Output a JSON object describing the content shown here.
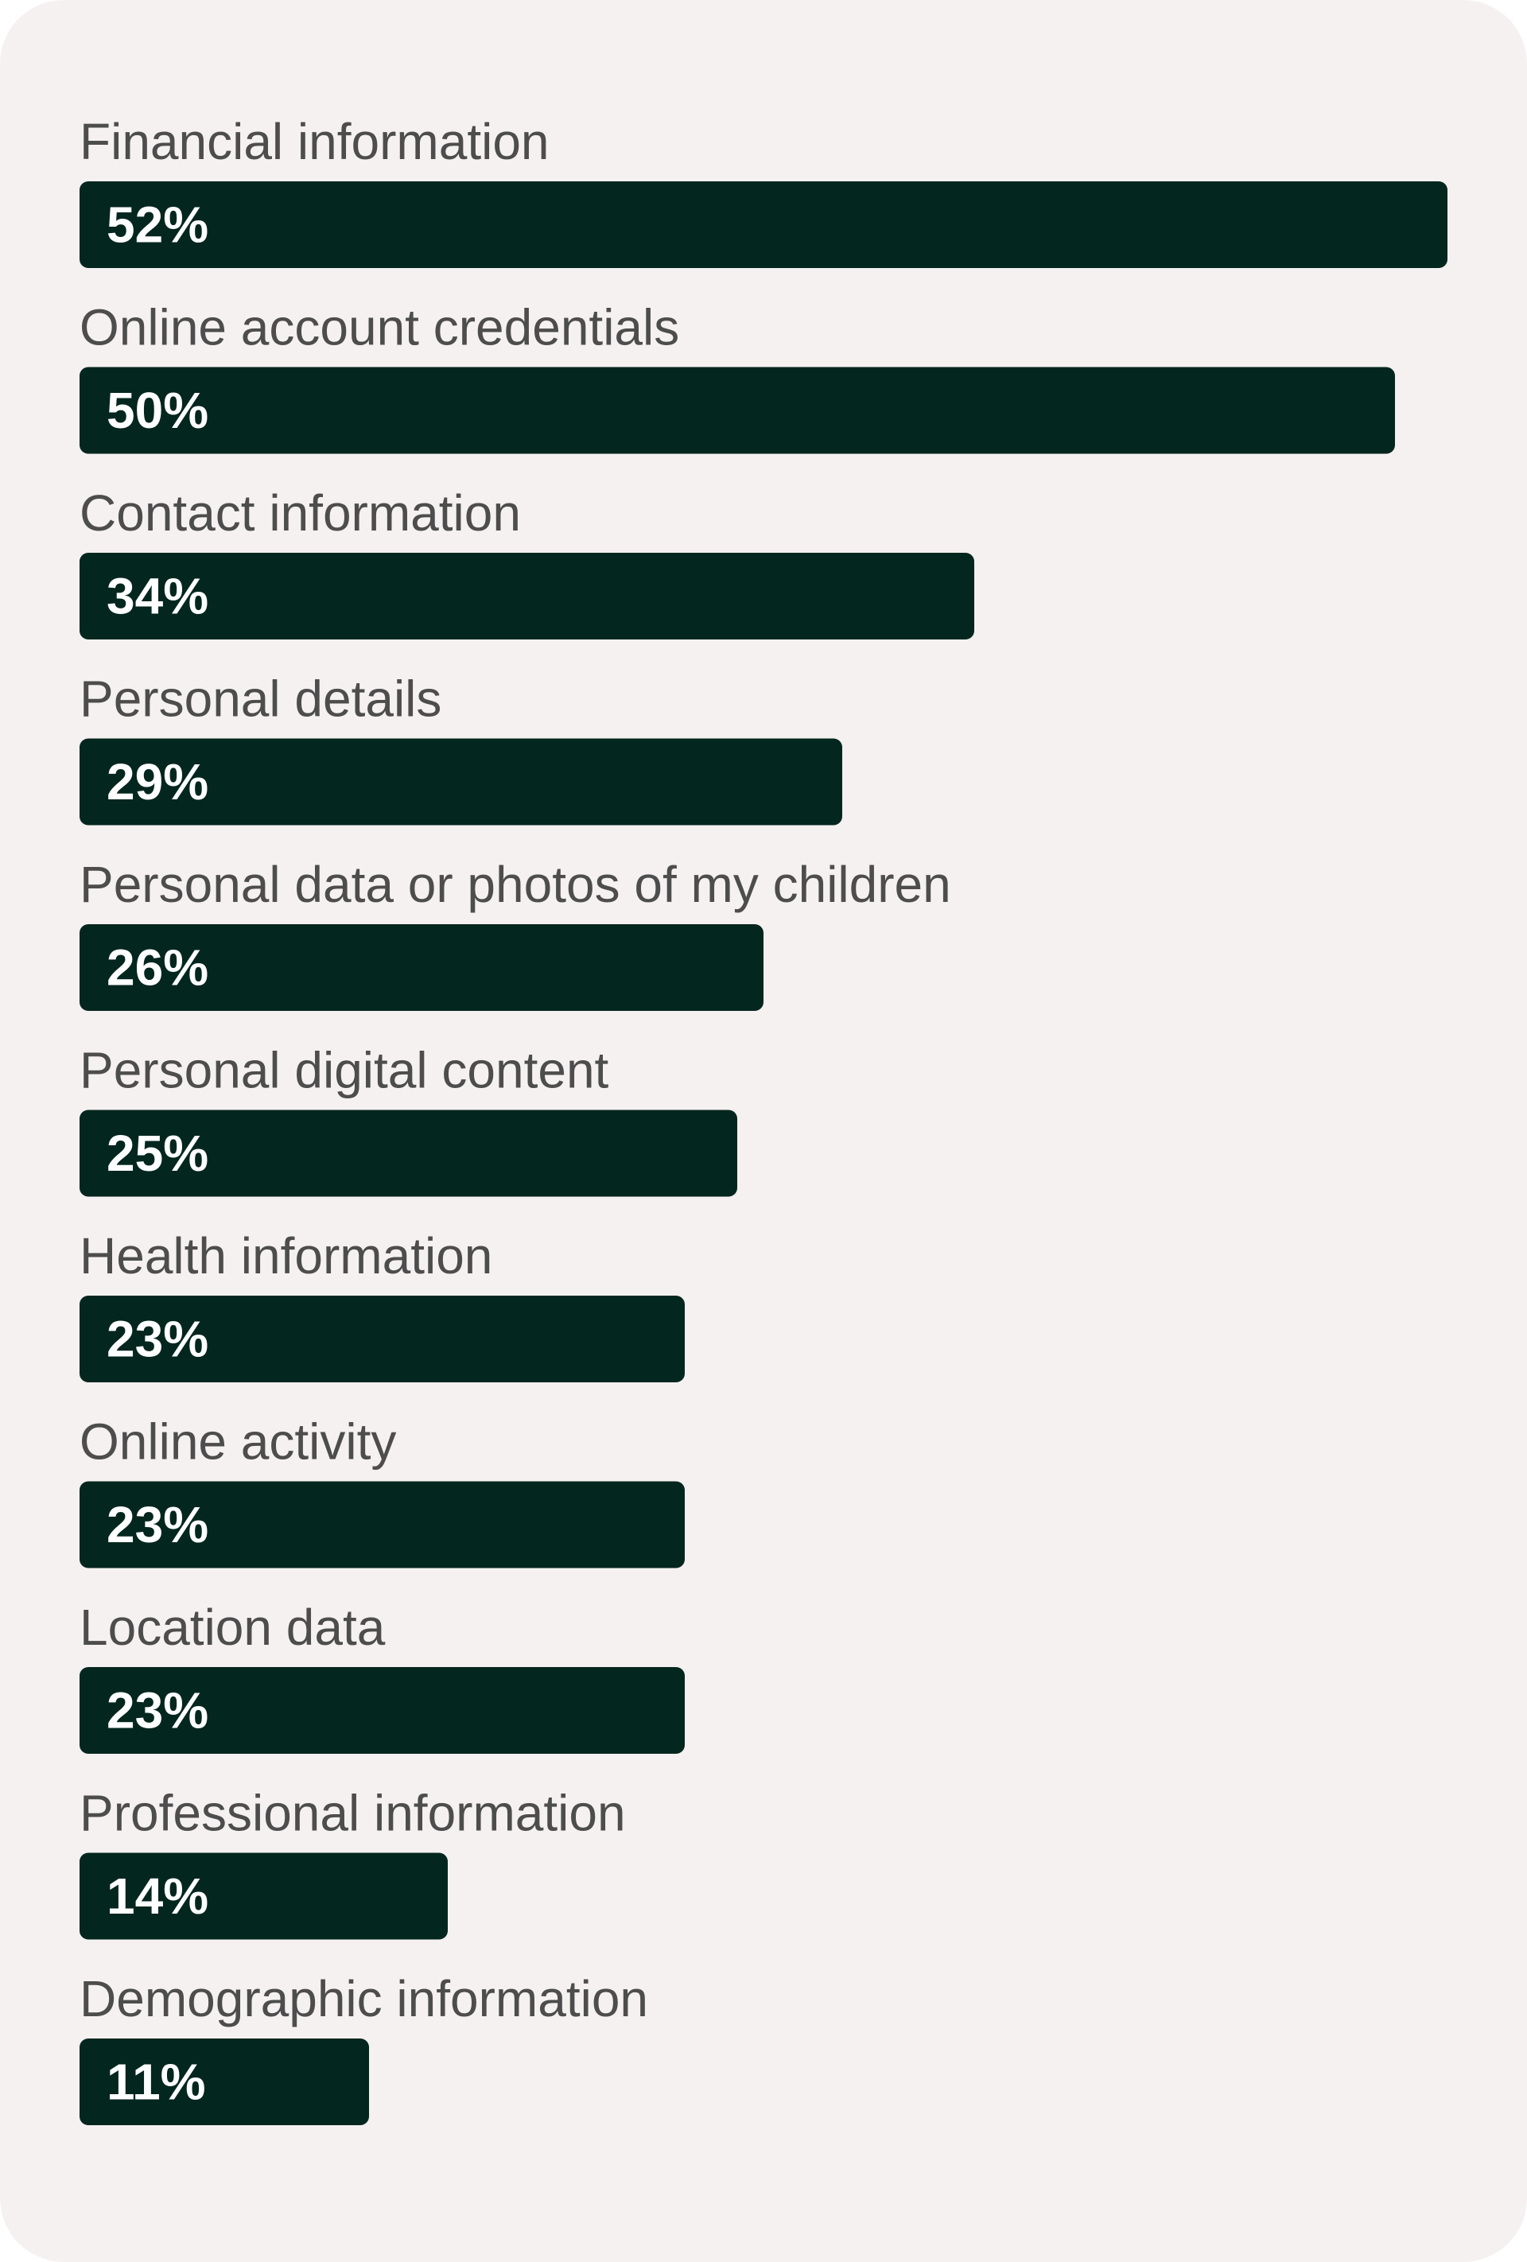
{
  "colors": {
    "card_background": "#f5f1f0",
    "bar": "#03261e",
    "category_text": "#4d4d4d",
    "value_text": "#ffffff"
  },
  "chart_data": {
    "type": "bar",
    "orientation": "horizontal",
    "categories": [
      "Financial information",
      "Online account credentials",
      "Contact information",
      "Personal details",
      "Personal data or photos of my children",
      "Personal digital content",
      "Health information",
      "Online activity",
      "Location data",
      "Professional information",
      "Demographic information"
    ],
    "values": [
      52,
      50,
      34,
      29,
      26,
      25,
      23,
      23,
      23,
      14,
      11
    ],
    "value_labels": [
      "52%",
      "50%",
      "34%",
      "29%",
      "26%",
      "25%",
      "23%",
      "23%",
      "23%",
      "14%",
      "11%"
    ],
    "unit": "%",
    "xlim": [
      0,
      52
    ],
    "grid": false,
    "legend": "none",
    "title": "",
    "xlabel": "",
    "ylabel": ""
  }
}
